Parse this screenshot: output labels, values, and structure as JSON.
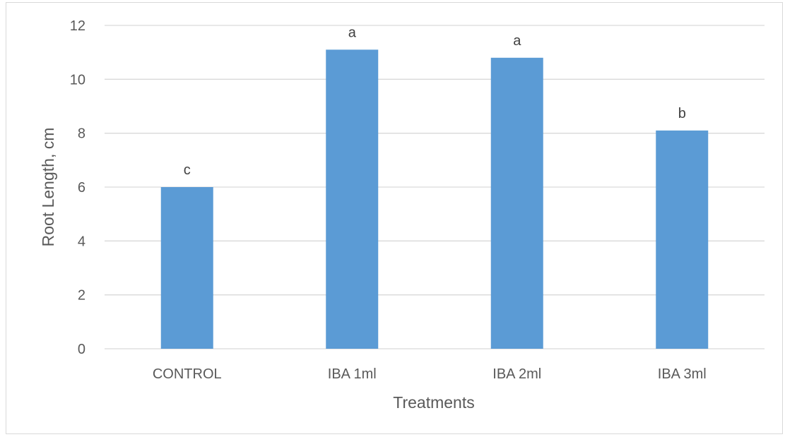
{
  "chart_data": {
    "type": "bar",
    "title": "",
    "xlabel": "Treatments",
    "ylabel": "Root Length, cm",
    "categories": [
      "CONTROL",
      "IBA 1ml",
      "IBA 2ml",
      "IBA 3ml"
    ],
    "series": [
      {
        "values": [
          6.0,
          11.1,
          10.8,
          8.1
        ],
        "color": "#5b9bd5",
        "data_labels": [
          "c",
          "a",
          "a",
          "b"
        ]
      }
    ],
    "ylim": [
      0,
      12
    ],
    "yticks": [
      0,
      2,
      4,
      6,
      8,
      10,
      12
    ],
    "grid": true,
    "legend": "none"
  }
}
